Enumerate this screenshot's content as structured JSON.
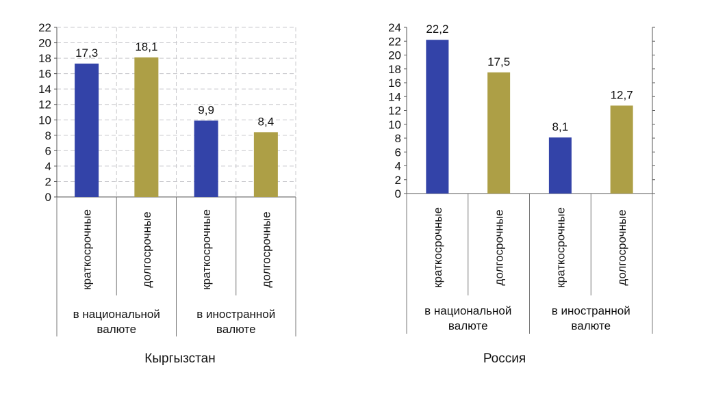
{
  "colors": {
    "short_term": "#3343a8",
    "long_term": "#ad9f46"
  },
  "chart_data": [
    {
      "type": "bar",
      "title": "Кыргызстан",
      "categories": [
        "краткосрочные",
        "долгосрочные",
        "краткосрочные",
        "долгосрочные"
      ],
      "groups": [
        {
          "label_lines": [
            "в национальной",
            "валюте"
          ]
        },
        {
          "label_lines": [
            "в иностранной",
            "валюте"
          ]
        }
      ],
      "values": [
        17.3,
        18.1,
        9.9,
        8.4
      ],
      "value_labels": [
        "17,3",
        "18,1",
        "9,9",
        "8,4"
      ],
      "yticks": [
        "0",
        "2",
        "4",
        "6",
        "8",
        "10",
        "12",
        "14",
        "16",
        "18",
        "20",
        "22"
      ],
      "ylim": [
        0,
        22
      ],
      "grid": true
    },
    {
      "type": "bar",
      "title": "Россия",
      "categories": [
        "краткосрочные",
        "долгосрочные",
        "краткосрочные",
        "долгосрочные"
      ],
      "groups": [
        {
          "label_lines": [
            "в национальной",
            "валюте"
          ]
        },
        {
          "label_lines": [
            "в иностранной",
            "валюте"
          ]
        }
      ],
      "values": [
        22.2,
        17.5,
        8.1,
        12.7
      ],
      "value_labels": [
        "22,2",
        "17,5",
        "8,1",
        "12,7"
      ],
      "yticks": [
        "0",
        "2",
        "4",
        "6",
        "8",
        "10",
        "12",
        "14",
        "16",
        "18",
        "20",
        "22",
        "24"
      ],
      "ylim": [
        0,
        24
      ],
      "grid": false
    }
  ]
}
